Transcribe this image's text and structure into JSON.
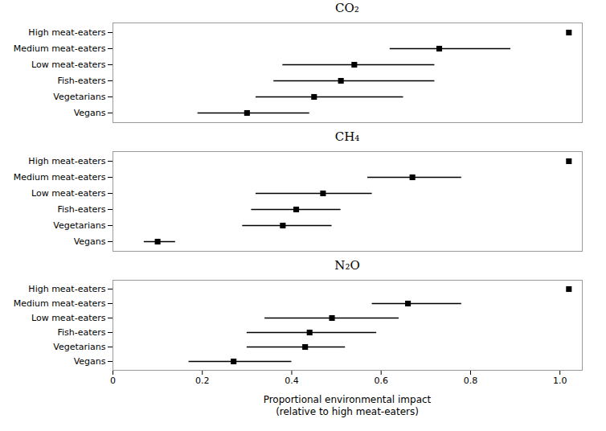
{
  "chart_data": [
    {
      "type": "dot",
      "title": "CO₂",
      "categories": [
        "High meat-eaters",
        "Medium meat-eaters",
        "Low meat-eaters",
        "Fish-eaters",
        "Vegetarians",
        "Vegans"
      ],
      "values": [
        1.02,
        0.73,
        0.54,
        0.51,
        0.45,
        0.3
      ],
      "error_low": [
        null,
        0.62,
        0.38,
        0.36,
        0.32,
        0.19
      ],
      "error_high": [
        null,
        0.89,
        0.72,
        0.72,
        0.65,
        0.44
      ],
      "color": "#000000",
      "marker": "square",
      "xlim": [
        0,
        1.05
      ],
      "tick_labels": "y",
      "grid": false
    },
    {
      "type": "dot",
      "title": "CH₄",
      "categories": [
        "High meat-eaters",
        "Medium meat-eaters",
        "Low meat-eaters",
        "Fish-eaters",
        "Vegetarians",
        "Vegans"
      ],
      "values": [
        1.02,
        0.67,
        0.47,
        0.41,
        0.38,
        0.1
      ],
      "error_low": [
        null,
        0.57,
        0.32,
        0.31,
        0.29,
        0.07
      ],
      "error_high": [
        null,
        0.78,
        0.58,
        0.51,
        0.49,
        0.14
      ],
      "color": "#000000",
      "marker": "square",
      "xlim": [
        0,
        1.05
      ],
      "tick_labels": "y",
      "grid": false
    },
    {
      "type": "dot",
      "title": "N₂O",
      "categories": [
        "High meat-eaters",
        "Medium meat-eaters",
        "Low meat-eaters",
        "Fish-eaters",
        "Vegetarians",
        "Vegans"
      ],
      "values": [
        1.02,
        0.66,
        0.49,
        0.44,
        0.43,
        0.27
      ],
      "error_low": [
        null,
        0.58,
        0.34,
        0.3,
        0.3,
        0.17
      ],
      "error_high": [
        null,
        0.78,
        0.64,
        0.59,
        0.52,
        0.4
      ],
      "color": "#000000",
      "marker": "square",
      "xlabel": "Proportional environmental impact\n(relative to high meat-eaters)",
      "xlim": [
        0,
        1.05
      ],
      "xticks": [
        0,
        0.2,
        0.4,
        0.6,
        0.8,
        {
          "value": 1,
          "label": "1.0"
        }
      ],
      "grid": false
    }
  ]
}
